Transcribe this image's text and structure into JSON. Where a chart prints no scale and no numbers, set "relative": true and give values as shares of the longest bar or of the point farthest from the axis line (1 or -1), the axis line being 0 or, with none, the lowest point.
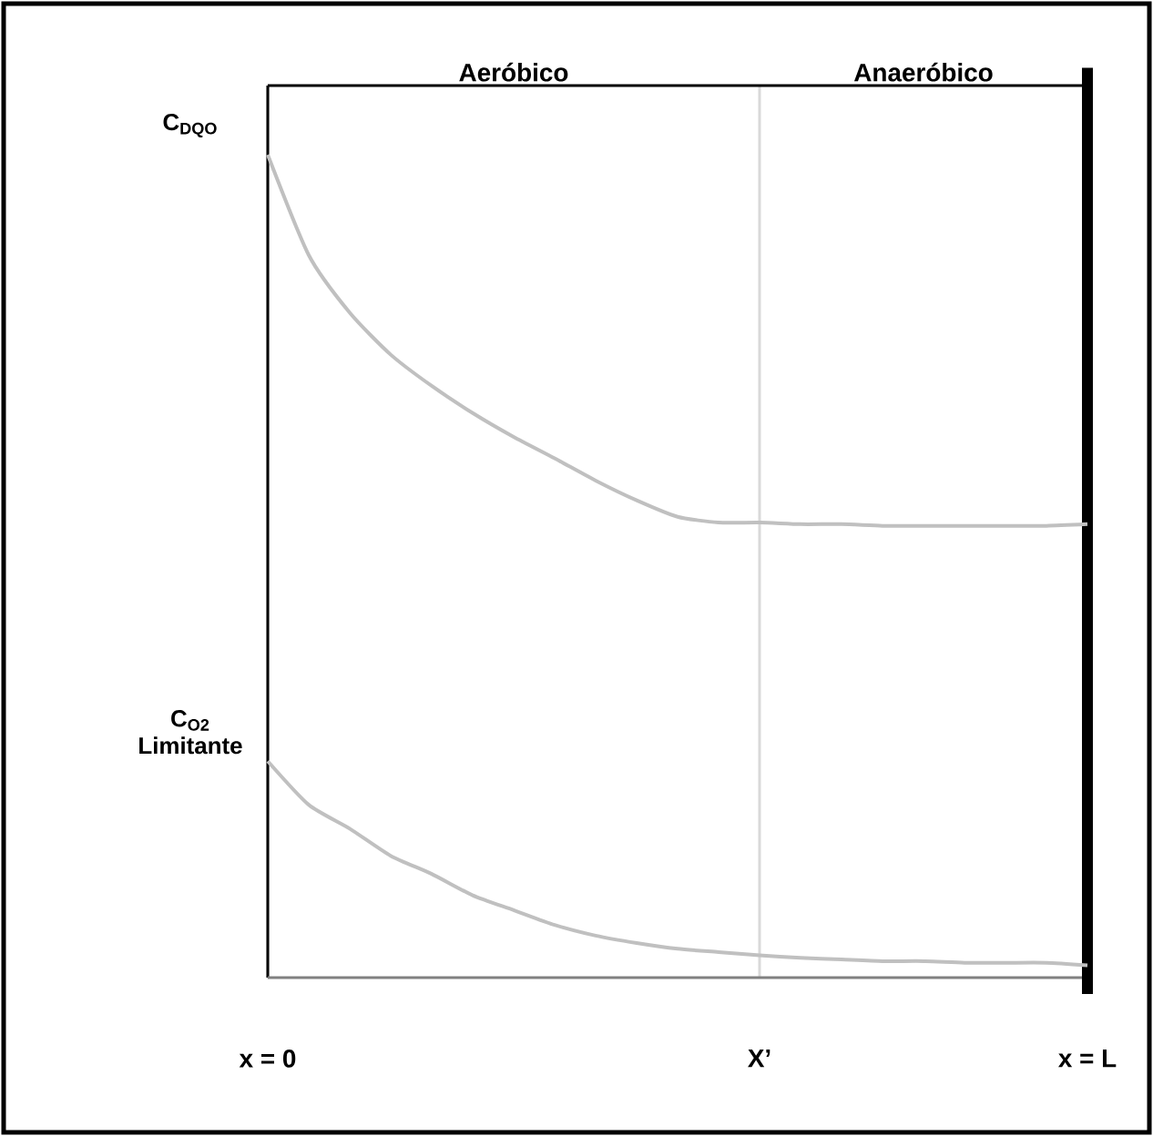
{
  "chart_data": {
    "type": "line",
    "relative": true,
    "grid": "x",
    "categories": [
      "x = 0",
      null,
      null,
      null,
      null,
      null,
      null,
      null,
      null,
      null,
      null,
      null,
      "X’",
      null,
      null,
      null,
      null,
      null,
      null,
      null,
      "x = L"
    ],
    "series": [
      {
        "color": "#c0c0c0",
        "values": [
          1,
          0.878,
          0.808,
          0.757,
          0.719,
          0.686,
          0.657,
          0.631,
          0.604,
          0.58,
          0.56,
          0.553,
          0.553,
          0.551,
          0.551,
          0.549,
          0.549,
          0.549,
          0.549,
          0.549,
          0.551
        ]
      },
      {
        "color": "#c0c0c0",
        "values": [
          0.263,
          0.21,
          0.181,
          0.148,
          0.126,
          0.1,
          0.082,
          0.064,
          0.051,
          0.042,
          0.035,
          0.031,
          0.027,
          0.024,
          0.022,
          0.02,
          0.02,
          0.018,
          0.018,
          0.018,
          0.015
        ]
      }
    ],
    "annotations": [
      "Aeróbico",
      "Anaeróbico",
      {
        "text": "C$_{DQO}$",
        "x": "x = 0",
        "y": 1
      },
      {
        "text": "C$_{O2}$ Limitante",
        "x": "x = 0",
        "y": 0.263
      }
    ]
  }
}
